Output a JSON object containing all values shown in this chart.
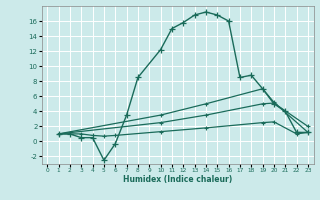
{
  "xlabel": "Humidex (Indice chaleur)",
  "bg_color": "#cceaea",
  "grid_color": "#ffffff",
  "line_color": "#1a6b5a",
  "xlim": [
    -0.5,
    23.5
  ],
  "ylim": [
    -3,
    18
  ],
  "yticks": [
    -2,
    0,
    2,
    4,
    6,
    8,
    10,
    12,
    14,
    16
  ],
  "xticks": [
    0,
    1,
    2,
    3,
    4,
    5,
    6,
    7,
    8,
    9,
    10,
    11,
    12,
    13,
    14,
    15,
    16,
    17,
    18,
    19,
    20,
    21,
    22,
    23
  ],
  "line1_x": [
    1,
    2,
    3,
    4,
    5,
    6,
    7,
    8,
    10,
    11,
    12,
    13,
    14,
    15,
    16,
    17,
    18,
    19,
    20,
    21,
    22,
    23
  ],
  "line1_y": [
    1,
    1,
    0.5,
    0.5,
    -2.5,
    -0.3,
    3.5,
    8.5,
    12.2,
    15.0,
    15.8,
    16.8,
    17.2,
    16.8,
    16.0,
    8.5,
    8.8,
    7.0,
    5.0,
    4.0,
    1.2,
    1.2
  ],
  "line2_x": [
    1,
    3,
    4,
    5,
    6,
    10,
    14,
    19,
    20,
    22,
    23
  ],
  "line2_y": [
    1.0,
    1.0,
    0.8,
    0.7,
    0.8,
    1.3,
    1.8,
    2.5,
    2.6,
    1.0,
    1.2
  ],
  "line3_x": [
    1,
    10,
    14,
    19,
    20,
    23
  ],
  "line3_y": [
    1.0,
    2.5,
    3.5,
    5.0,
    5.1,
    2.0
  ],
  "line4_x": [
    1,
    10,
    14,
    19,
    20,
    23
  ],
  "line4_y": [
    1.0,
    3.5,
    5.0,
    7.0,
    5.2,
    1.2
  ]
}
